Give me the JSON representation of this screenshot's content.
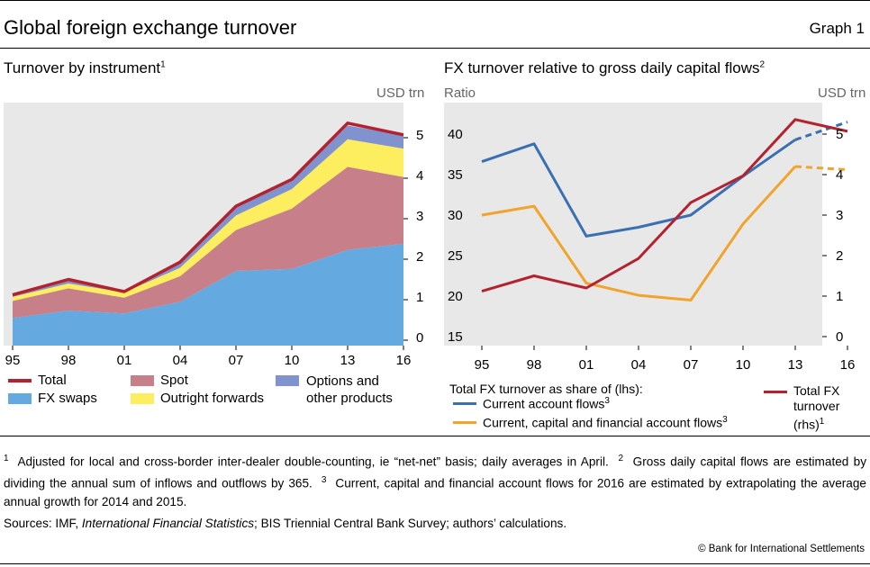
{
  "header": {
    "title": "Global foreign exchange turnover",
    "graph_number": "Graph 1"
  },
  "panel_left": {
    "title": "Turnover by instrument",
    "title_note": "1",
    "unit_right": "USD trn"
  },
  "panel_right": {
    "title": "FX turnover relative to gross daily capital flows",
    "title_note": "2",
    "unit_left": "Ratio",
    "unit_right": "USD trn",
    "legend_heading": "Total FX turnover as share of (lhs):",
    "legend_current": "Current account flows",
    "legend_current_note": "3",
    "legend_capital": "Current, capital and financial account flows",
    "legend_capital_note": "3",
    "legend_total_line1": "Total FX",
    "legend_total_line2": "turnover",
    "legend_total_line3": "(rhs)",
    "legend_total_note": "1"
  },
  "footnotes": {
    "n1_mark": "1",
    "n1": "Adjusted for local and cross-border inter-dealer double-counting, ie “net-net” basis; daily averages in April.",
    "n2_mark": "2",
    "n2a": "Gross daily capital flows",
    "n2b": "are estimated by dividing the annual sum of inflows and outflows by 365.",
    "n3_mark": "3",
    "n3a": "Current, capital and financial account flows for 2016 are",
    "n3b": "estimated by extrapolating the average annual growth for 2014 and 2015."
  },
  "sources": {
    "prefix": "Sources: IMF, ",
    "italic": "International Financial Statistics",
    "suffix": "; BIS Triennial Central Bank Survey; authors’ calculations."
  },
  "copyright": "© Bank for International Settlements",
  "colors": {
    "total": "#b2222f",
    "fx_swaps": "#64a9e0",
    "spot": "#c78089",
    "outright": "#fcee5f",
    "options": "#8193cf",
    "current_account": "#3a6fb2",
    "capital_flows": "#f0a42c",
    "panel_bg": "#e8e8e8"
  },
  "chart_data": [
    {
      "type": "area",
      "stacked": true,
      "x": [
        "95",
        "98",
        "01",
        "04",
        "07",
        "10",
        "13",
        "16"
      ],
      "ylim": [
        0,
        5.5
      ],
      "yticks": [
        0,
        1,
        2,
        3,
        4,
        5
      ],
      "y_axis_side": "right",
      "grid": false,
      "series": [
        {
          "name": "FX swaps",
          "values": [
            0.55,
            0.73,
            0.66,
            0.95,
            1.71,
            1.76,
            2.23,
            2.38
          ]
        },
        {
          "name": "Spot",
          "values": [
            0.42,
            0.55,
            0.39,
            0.63,
            1.01,
            1.49,
            2.05,
            1.65
          ]
        },
        {
          "name": "Outright forwards",
          "values": [
            0.1,
            0.12,
            0.13,
            0.21,
            0.36,
            0.48,
            0.68,
            0.7
          ]
        },
        {
          "name": "Options and other products",
          "values": [
            0.05,
            0.07,
            0.06,
            0.12,
            0.21,
            0.21,
            0.34,
            0.33
          ]
        }
      ],
      "overlay_line": {
        "name": "Total",
        "values": [
          1.12,
          1.5,
          1.2,
          1.93,
          3.31,
          3.97,
          5.36,
          5.07
        ]
      },
      "legend": [
        "Total",
        "Spot",
        "Options and other products",
        "FX swaps",
        "Outright forwards"
      ],
      "legend_position": "bottom"
    },
    {
      "type": "line",
      "x": [
        "95",
        "98",
        "01",
        "04",
        "07",
        "10",
        "13",
        "16"
      ],
      "ylim_left": [
        15,
        45
      ],
      "yticks_left": [
        15,
        20,
        25,
        30,
        35,
        40
      ],
      "ylim_right": [
        0,
        6
      ],
      "yticks_right": [
        0,
        1,
        2,
        3,
        4,
        5
      ],
      "grid": false,
      "series": [
        {
          "name": "Current account flows",
          "axis": "left",
          "values": [
            36.6,
            38.8,
            27.4,
            28.5,
            30.0,
            34.8,
            39.3,
            41.5
          ],
          "dashed_last_segment": true
        },
        {
          "name": "Current, capital and financial account flows",
          "axis": "left",
          "values": [
            30.0,
            31.1,
            21.6,
            20.1,
            19.5,
            28.9,
            36.0,
            35.6
          ],
          "dashed_last_segment": true
        },
        {
          "name": "Total FX turnover",
          "axis": "right",
          "values": [
            1.12,
            1.5,
            1.2,
            1.93,
            3.31,
            3.97,
            5.36,
            5.07
          ]
        }
      ],
      "legend_position": "bottom"
    }
  ]
}
